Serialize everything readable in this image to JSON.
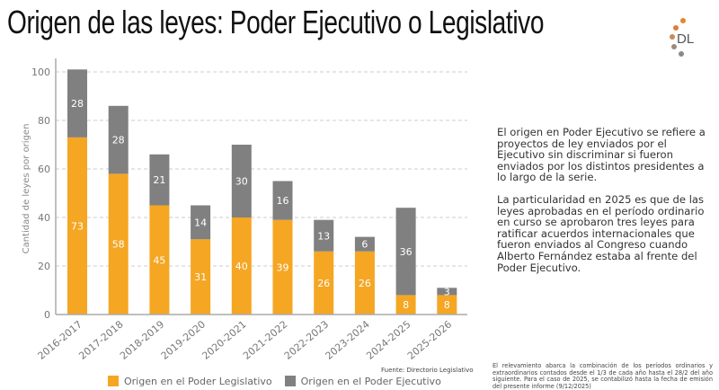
{
  "header": {
    "title": "Origen de las leyes: Poder Ejecutivo o Legislativo",
    "logo_text": "DL"
  },
  "colors": {
    "legislativo": "#F5A623",
    "ejecutivo": "#808080",
    "grid": "#cccccc",
    "logo_dots": [
      "#E8852A",
      "#E07B39",
      "#C98A5A",
      "#9E8A7C",
      "#8A8A8A"
    ]
  },
  "chart_data": {
    "type": "bar",
    "stacked": true,
    "title": "Origen de las leyes: Poder Ejecutivo o Legislativo",
    "xlabel": "",
    "ylabel": "Cantidad de leyes por origen",
    "ylim": [
      0,
      100
    ],
    "yticks": [
      0,
      20,
      40,
      60,
      80,
      100
    ],
    "grid": true,
    "legend_position": "bottom",
    "categories": [
      "2016-2017",
      "2017-2018",
      "2018-2019",
      "2019-2020",
      "2020-2021",
      "2021-2022",
      "2022-2023",
      "2023-2024",
      "2024-2025",
      "2025-2026"
    ],
    "series": [
      {
        "name": "Origen en el Poder Legislativo",
        "values": [
          73,
          58,
          45,
          31,
          40,
          39,
          26,
          26,
          8,
          8
        ]
      },
      {
        "name": "Origen en el Poder Ejecutivo",
        "values": [
          28,
          28,
          21,
          14,
          30,
          16,
          13,
          6,
          36,
          3
        ]
      }
    ],
    "source": "Fuente: Directorio Legislativo"
  },
  "notes": {
    "paragraph1": "El origen en Poder Ejecutivo se refiere a proyectos de ley enviados por el Ejecutivo sin discriminar si fueron enviados por los distintos presidentes a lo largo de la serie.",
    "paragraph2": "La particularidad en 2025 es que de las leyes aprobadas en el período ordinario en curso se aprobaron tres leyes para ratificar acuerdos internacionales que fueron enviados al Congreso cuando Alberto Fernández estaba al frente del Poder Ejecutivo."
  },
  "footnote": "El relevamiento abarca la combinación de los períodos ordinarios y extraordinarios contados desde el 1/3 de cada año hasta el 28/2 del año siguiente. Para el caso de 2025, se contabilizó hasta la fecha de emisión del presente informe (9/12/2025)"
}
